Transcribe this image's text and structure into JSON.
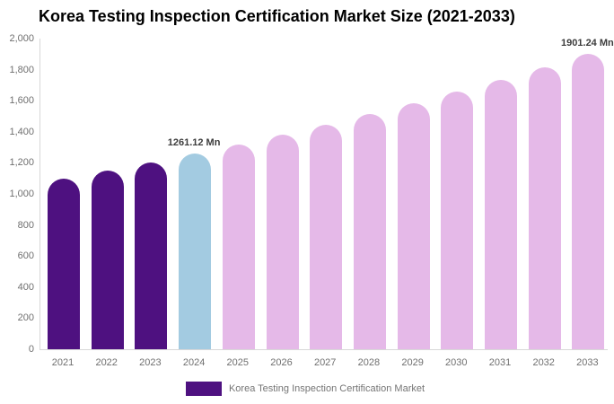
{
  "title": "Korea Testing Inspection Certification Market Size (2021-2033)",
  "legend": {
    "label": "Korea Testing Inspection Certification Market",
    "swatch_color": "#4e1180"
  },
  "colors": {
    "historical": "#4e1180",
    "highlight": "#a3cbe1",
    "forecast": "#e5b9e8",
    "axis_line": "#d8d8d8",
    "tick_text": "#6f6f6f",
    "data_label_text": "#3c3c3c"
  },
  "chart_data": {
    "type": "bar",
    "title": "Korea Testing Inspection Certification Market Size (2021-2033)",
    "categories": [
      "2021",
      "2022",
      "2023",
      "2024",
      "2025",
      "2026",
      "2027",
      "2028",
      "2029",
      "2030",
      "2031",
      "2032",
      "2033"
    ],
    "values": [
      1100.2,
      1151.4,
      1205.0,
      1261.12,
      1319.9,
      1381.4,
      1445.8,
      1513.2,
      1583.7,
      1657.5,
      1734.7,
      1815.6,
      1901.24
    ],
    "color_groups": [
      "historical",
      "historical",
      "historical",
      "highlight",
      "forecast",
      "forecast",
      "forecast",
      "forecast",
      "forecast",
      "forecast",
      "forecast",
      "forecast",
      "forecast"
    ],
    "unit": "Mn",
    "xlabel": "",
    "ylabel": "",
    "ylim": [
      0,
      2000
    ],
    "ytick_step": 200,
    "ytick_labels": [
      "0",
      "200",
      "400",
      "600",
      "800",
      "1,000",
      "1,200",
      "1,400",
      "1,600",
      "1,800",
      "2,000"
    ],
    "grid": false,
    "legend_position": "bottom-center",
    "annotations": [
      {
        "category": "2024",
        "index": 3,
        "text": "1261.12 Mn"
      },
      {
        "category": "2033",
        "index": 12,
        "text": "1901.24 Mn"
      }
    ]
  }
}
